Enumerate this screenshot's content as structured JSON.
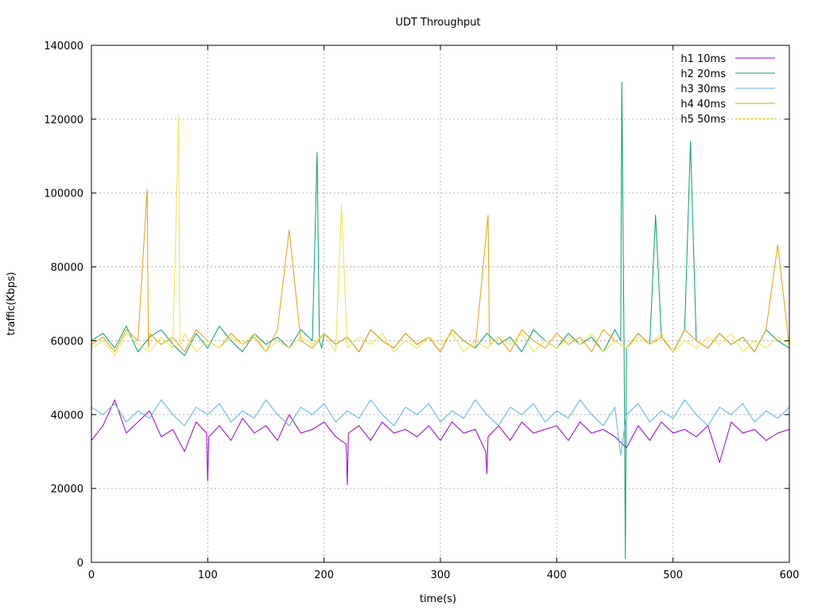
{
  "chart_data": {
    "type": "line",
    "title": "UDT Throughput",
    "xlabel": "time(s)",
    "ylabel": "traffic(Kbps)",
    "xlim": [
      0,
      600
    ],
    "ylim": [
      0,
      140000
    ],
    "xticks": [
      0,
      100,
      200,
      300,
      400,
      500,
      600
    ],
    "yticks": [
      0,
      20000,
      40000,
      60000,
      80000,
      100000,
      120000,
      140000
    ],
    "grid": true,
    "legend_position": "top-right",
    "series": [
      {
        "name": "h1 10ms",
        "color": "#9400d3",
        "x": [
          0,
          10,
          20,
          30,
          40,
          50,
          60,
          70,
          80,
          90,
          99,
          100,
          101,
          110,
          120,
          130,
          140,
          150,
          160,
          170,
          180,
          190,
          200,
          210,
          219,
          220,
          221,
          230,
          240,
          250,
          260,
          270,
          280,
          290,
          300,
          310,
          320,
          330,
          339,
          340,
          341,
          350,
          360,
          370,
          380,
          390,
          400,
          410,
          420,
          430,
          440,
          450,
          460,
          470,
          480,
          490,
          500,
          510,
          520,
          530,
          540,
          550,
          560,
          570,
          580,
          590,
          600
        ],
        "y": [
          33000,
          37000,
          44000,
          35000,
          38000,
          41000,
          34000,
          36000,
          30000,
          38000,
          35000,
          22000,
          34000,
          37000,
          33000,
          39000,
          35000,
          37000,
          33000,
          40000,
          35000,
          36000,
          38000,
          34000,
          32000,
          21000,
          35000,
          37000,
          33000,
          38000,
          35000,
          36000,
          34000,
          37000,
          33000,
          38000,
          35000,
          36000,
          30000,
          24000,
          34000,
          37000,
          33000,
          38000,
          35000,
          36000,
          37000,
          33000,
          38000,
          35000,
          36000,
          34000,
          31000,
          37000,
          33000,
          38000,
          35000,
          36000,
          34000,
          37000,
          27000,
          38000,
          35000,
          36000,
          33000,
          35000,
          36000
        ]
      },
      {
        "name": "h2 20ms",
        "color": "#009e73",
        "x": [
          0,
          10,
          20,
          30,
          40,
          50,
          60,
          70,
          80,
          90,
          100,
          110,
          120,
          130,
          140,
          150,
          160,
          170,
          180,
          190,
          194,
          196,
          198,
          200,
          210,
          220,
          230,
          240,
          250,
          260,
          270,
          280,
          290,
          300,
          310,
          320,
          330,
          340,
          350,
          360,
          370,
          380,
          390,
          400,
          410,
          420,
          430,
          440,
          450,
          455,
          456,
          458,
          459,
          460,
          470,
          480,
          485,
          490,
          500,
          510,
          515,
          520,
          530,
          540,
          550,
          560,
          570,
          580,
          590,
          600
        ],
        "y": [
          60000,
          62000,
          58000,
          64000,
          57000,
          61000,
          63000,
          59000,
          56000,
          62000,
          58000,
          64000,
          60000,
          57000,
          62000,
          59000,
          61000,
          58000,
          63000,
          60000,
          111000,
          60000,
          58000,
          62000,
          59000,
          61000,
          57000,
          63000,
          60000,
          58000,
          62000,
          59000,
          61000,
          57000,
          63000,
          60000,
          58000,
          62000,
          59000,
          61000,
          57000,
          63000,
          60000,
          58000,
          62000,
          59000,
          61000,
          57000,
          63000,
          60000,
          130000,
          55000,
          1000,
          58000,
          62000,
          59000,
          94000,
          61000,
          57000,
          63000,
          114000,
          60000,
          58000,
          62000,
          59000,
          61000,
          57000,
          63000,
          60000,
          58000
        ]
      },
      {
        "name": "h3 30ms",
        "color": "#56b4e9",
        "x": [
          0,
          10,
          20,
          30,
          40,
          50,
          60,
          70,
          80,
          90,
          100,
          110,
          120,
          130,
          140,
          150,
          160,
          170,
          180,
          190,
          200,
          210,
          220,
          230,
          240,
          250,
          260,
          270,
          280,
          290,
          300,
          310,
          320,
          330,
          340,
          350,
          360,
          370,
          380,
          390,
          400,
          410,
          420,
          430,
          440,
          450,
          455,
          460,
          470,
          480,
          490,
          500,
          510,
          520,
          530,
          540,
          550,
          560,
          570,
          580,
          590,
          600
        ],
        "y": [
          42000,
          40000,
          43000,
          38000,
          41000,
          39000,
          44000,
          40000,
          37000,
          42000,
          40000,
          43000,
          38000,
          41000,
          39000,
          44000,
          40000,
          37000,
          42000,
          40000,
          43000,
          38000,
          41000,
          39000,
          44000,
          40000,
          37000,
          42000,
          40000,
          43000,
          38000,
          41000,
          39000,
          44000,
          40000,
          37000,
          42000,
          40000,
          43000,
          38000,
          41000,
          39000,
          44000,
          40000,
          37000,
          42000,
          29000,
          40000,
          43000,
          38000,
          41000,
          39000,
          44000,
          40000,
          37000,
          42000,
          40000,
          43000,
          38000,
          41000,
          39000,
          42000
        ]
      },
      {
        "name": "h4 40ms",
        "color": "#e69f00",
        "x": [
          0,
          10,
          20,
          30,
          40,
          48,
          49,
          50,
          60,
          70,
          80,
          90,
          100,
          110,
          120,
          130,
          140,
          150,
          160,
          170,
          180,
          190,
          200,
          210,
          220,
          230,
          240,
          250,
          260,
          270,
          280,
          290,
          300,
          310,
          320,
          330,
          341,
          342,
          343,
          350,
          360,
          370,
          380,
          390,
          400,
          410,
          420,
          430,
          440,
          450,
          460,
          470,
          480,
          490,
          500,
          510,
          520,
          530,
          540,
          550,
          560,
          570,
          580,
          590,
          600
        ],
        "y": [
          59000,
          61000,
          57000,
          63000,
          60000,
          101000,
          58000,
          62000,
          59000,
          61000,
          57000,
          63000,
          60000,
          58000,
          62000,
          59000,
          61000,
          57000,
          63000,
          90000,
          60000,
          58000,
          62000,
          59000,
          61000,
          57000,
          63000,
          60000,
          58000,
          62000,
          59000,
          61000,
          57000,
          63000,
          60000,
          58000,
          94000,
          62000,
          59000,
          61000,
          57000,
          63000,
          60000,
          58000,
          62000,
          59000,
          61000,
          57000,
          63000,
          60000,
          58000,
          62000,
          59000,
          61000,
          57000,
          63000,
          60000,
          58000,
          62000,
          59000,
          61000,
          57000,
          63000,
          86000,
          58000
        ]
      },
      {
        "name": "h5 50ms",
        "color": "#f0e442",
        "x": [
          0,
          10,
          20,
          30,
          40,
          50,
          60,
          70,
          75,
          76,
          77,
          80,
          90,
          100,
          110,
          120,
          130,
          140,
          150,
          160,
          170,
          180,
          190,
          200,
          210,
          215,
          220,
          230,
          240,
          250,
          260,
          270,
          280,
          290,
          300,
          310,
          320,
          330,
          340,
          350,
          360,
          370,
          380,
          390,
          400,
          410,
          420,
          430,
          440,
          450,
          460,
          470,
          480,
          490,
          500,
          510,
          520,
          530,
          540,
          550,
          560,
          570,
          580,
          590,
          600
        ],
        "y": [
          58000,
          60000,
          56000,
          62000,
          59000,
          57000,
          61000,
          58000,
          121000,
          60000,
          59000,
          62000,
          57000,
          60000,
          58000,
          61000,
          59000,
          62000,
          57000,
          60000,
          58000,
          61000,
          59000,
          62000,
          57000,
          97000,
          58000,
          61000,
          59000,
          62000,
          57000,
          60000,
          58000,
          61000,
          59000,
          62000,
          57000,
          60000,
          58000,
          61000,
          59000,
          62000,
          57000,
          60000,
          58000,
          61000,
          59000,
          62000,
          57000,
          60000,
          58000,
          61000,
          59000,
          62000,
          57000,
          60000,
          58000,
          61000,
          59000,
          62000,
          57000,
          60000,
          58000,
          61000,
          59000
        ]
      }
    ]
  }
}
